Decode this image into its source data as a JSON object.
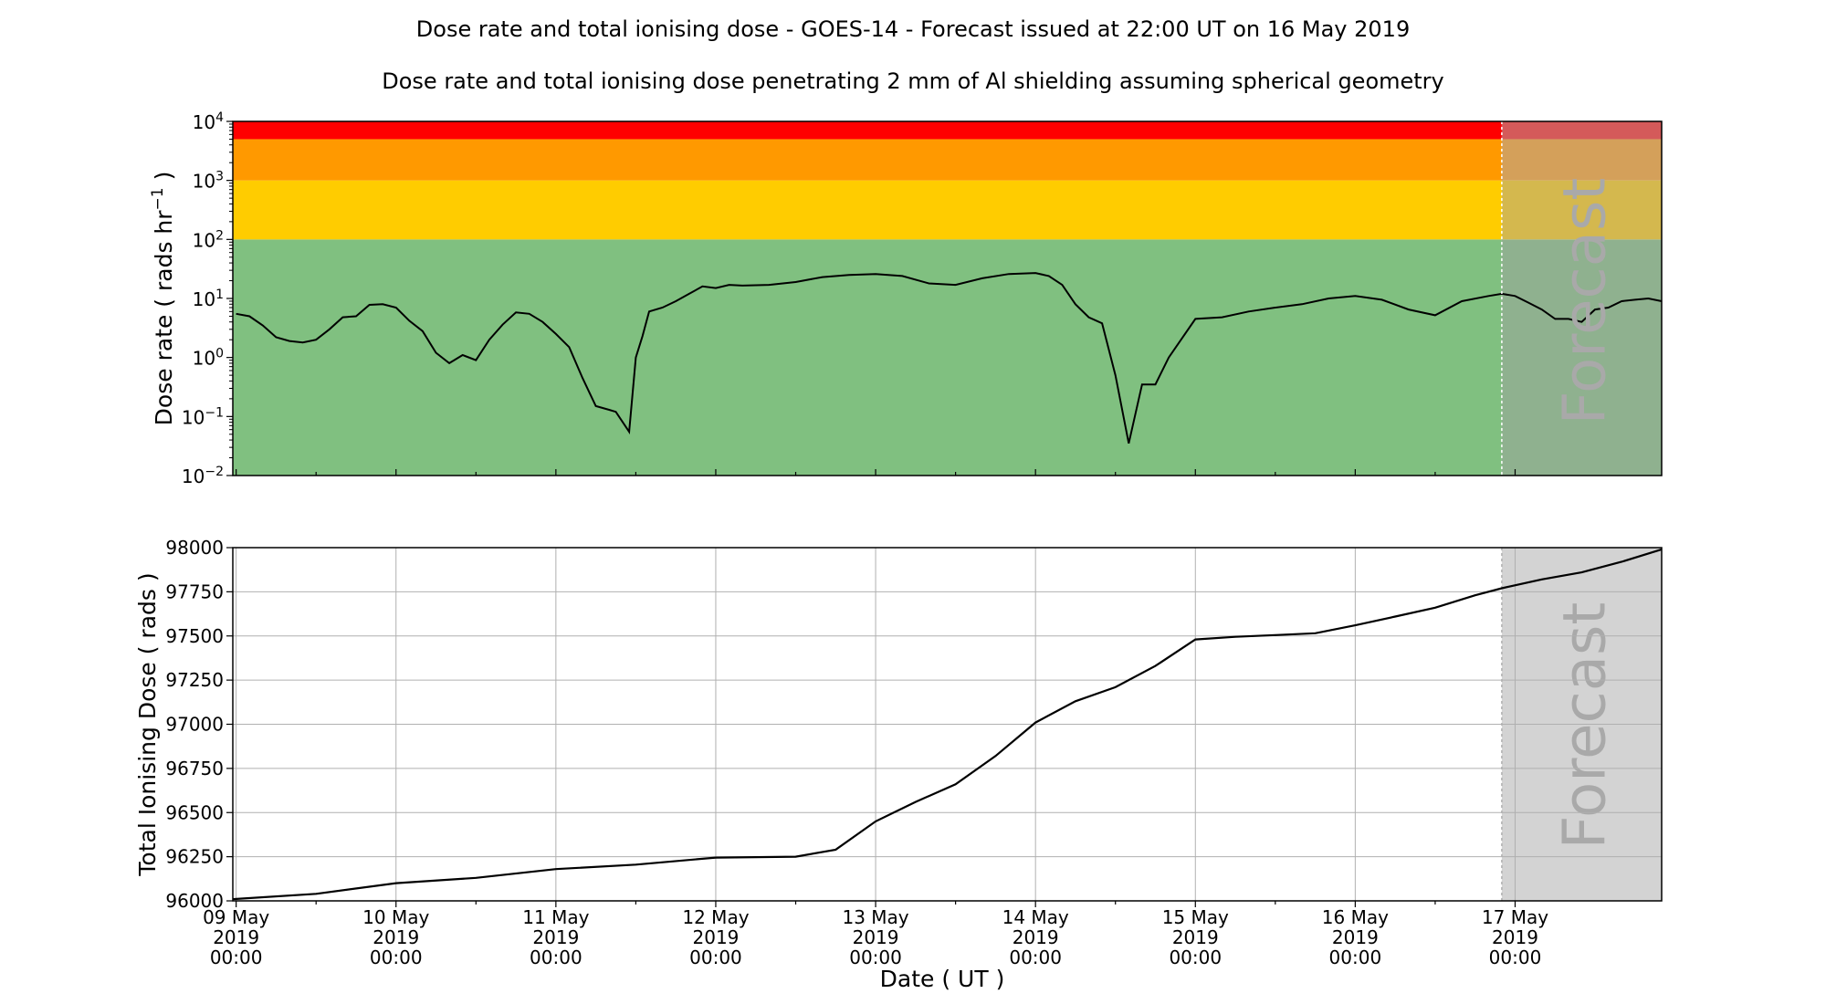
{
  "title": "Dose rate and total ionising dose - GOES-14 - Forecast issued at 22:00 UT on 16 May 2019",
  "subtitle": "Dose rate and total ionising dose penetrating 2 mm of Al shielding assuming spherical geometry",
  "forecast_label": "Forecast",
  "xlabel": "Date ( UT )",
  "x_ticks": [
    {
      "day": 0,
      "l1": "09 May",
      "l2": "2019",
      "l3": "00:00"
    },
    {
      "day": 1,
      "l1": "10 May",
      "l2": "2019",
      "l3": "00:00"
    },
    {
      "day": 2,
      "l1": "11 May",
      "l2": "2019",
      "l3": "00:00"
    },
    {
      "day": 3,
      "l1": "12 May",
      "l2": "2019",
      "l3": "00:00"
    },
    {
      "day": 4,
      "l1": "13 May",
      "l2": "2019",
      "l3": "00:00"
    },
    {
      "day": 5,
      "l1": "14 May",
      "l2": "2019",
      "l3": "00:00"
    },
    {
      "day": 6,
      "l1": "15 May",
      "l2": "2019",
      "l3": "00:00"
    },
    {
      "day": 7,
      "l1": "16 May",
      "l2": "2019",
      "l3": "00:00"
    },
    {
      "day": 8,
      "l1": "17 May",
      "l2": "2019",
      "l3": "00:00"
    }
  ],
  "chart_data": [
    {
      "type": "line",
      "ylabel": "Dose rate ( rads hr",
      "ylabel_sup": "−1",
      "ylabel_end": " )",
      "yscale": "log",
      "ylim": [
        0.01,
        10000
      ],
      "xlim": [
        "08 May 2019 23:30",
        "17 May 2019 22:00"
      ],
      "forecast_start": "16 May 2019 22:00",
      "y_ticks": [
        {
          "value": 0.01,
          "base": "10",
          "exp": "−2"
        },
        {
          "value": 0.1,
          "base": "10",
          "exp": "−1"
        },
        {
          "value": 1,
          "base": "10",
          "exp": "0"
        },
        {
          "value": 10,
          "base": "10",
          "exp": "1"
        },
        {
          "value": 100,
          "base": "10",
          "exp": "2"
        },
        {
          "value": 1000,
          "base": "10",
          "exp": "3"
        },
        {
          "value": 10000,
          "base": "10",
          "exp": "4"
        }
      ],
      "bands": [
        {
          "from": 0.01,
          "to": 100,
          "color": "#80c080",
          "forecast_color": "#8fb18f"
        },
        {
          "from": 100,
          "to": 1000,
          "color": "#ffcc00",
          "forecast_color": "#d4b84e"
        },
        {
          "from": 1000,
          "to": 5000,
          "color": "#ff9900",
          "forecast_color": "#d4a05a"
        },
        {
          "from": 5000,
          "to": 10000,
          "color": "#ff0000",
          "forecast_color": "#d45a5a"
        }
      ],
      "series": [
        {
          "x": [
            "09 May 00:00",
            "09 May 02:00",
            "09 May 04:00",
            "09 May 06:00",
            "09 May 08:00",
            "09 May 10:00",
            "09 May 12:00",
            "09 May 14:00",
            "09 May 16:00",
            "09 May 18:00",
            "09 May 20:00",
            "09 May 22:00",
            "10 May 00:00",
            "10 May 02:00",
            "10 May 04:00",
            "10 May 06:00",
            "10 May 08:00",
            "10 May 10:00",
            "10 May 12:00",
            "10 May 14:00",
            "10 May 16:00",
            "10 May 18:00",
            "10 May 20:00",
            "10 May 22:00",
            "11 May 00:00",
            "11 May 02:00",
            "11 May 04:00",
            "11 May 06:00",
            "11 May 08:00",
            "11 May 09:00",
            "11 May 11:00",
            "11 May 12:00",
            "11 May 13:00",
            "11 May 14:00",
            "11 May 16:00",
            "11 May 18:00",
            "11 May 20:00",
            "11 May 22:00",
            "12 May 00:00",
            "12 May 02:00",
            "12 May 04:00",
            "12 May 08:00",
            "12 May 12:00",
            "12 May 16:00",
            "12 May 20:00",
            "13 May 00:00",
            "13 May 04:00",
            "13 May 08:00",
            "13 May 12:00",
            "13 May 16:00",
            "13 May 20:00",
            "14 May 00:00",
            "14 May 02:00",
            "14 May 04:00",
            "14 May 06:00",
            "14 May 08:00",
            "14 May 10:00",
            "14 May 12:00",
            "14 May 14:00",
            "14 May 16:00",
            "14 May 18:00",
            "14 May 20:00",
            "15 May 00:00",
            "15 May 04:00",
            "15 May 08:00",
            "15 May 12:00",
            "15 May 16:00",
            "15 May 20:00",
            "16 May 00:00",
            "16 May 04:00",
            "16 May 08:00",
            "16 May 12:00",
            "16 May 16:00",
            "16 May 20:00",
            "16 May 22:00",
            "17 May 00:00",
            "17 May 02:00",
            "17 May 04:00",
            "17 May 06:00",
            "17 May 08:00",
            "17 May 10:00",
            "17 May 12:00",
            "17 May 14:00",
            "17 May 16:00",
            "17 May 18:00",
            "17 May 20:00",
            "17 May 22:00"
          ],
          "y": [
            5.5,
            5.0,
            3.5,
            2.2,
            1.9,
            1.8,
            2.0,
            3.0,
            4.8,
            5.0,
            7.8,
            8.0,
            7.0,
            4.2,
            2.8,
            1.2,
            0.8,
            1.1,
            0.9,
            2.0,
            3.6,
            5.8,
            5.5,
            4.0,
            2.5,
            1.5,
            0.45,
            0.15,
            0.13,
            0.12,
            0.055,
            1.0,
            2.3,
            6.0,
            7.0,
            9.0,
            12.0,
            16.0,
            15.0,
            17.0,
            16.5,
            17.0,
            19.0,
            23.0,
            25.0,
            26.0,
            24.0,
            18.0,
            17.0,
            22.0,
            26.0,
            27.0,
            24.0,
            17.0,
            8.0,
            4.8,
            3.8,
            0.5,
            0.035,
            0.35,
            0.35,
            1.0,
            4.5,
            4.8,
            6.0,
            7.0,
            8.0,
            10.0,
            11.0,
            9.5,
            6.5,
            5.2,
            9.0,
            11.0,
            12.0,
            11.0,
            8.5,
            6.5,
            4.5,
            4.5,
            4.0,
            6.5,
            7.0,
            9.0,
            9.5,
            10.0,
            9.0
          ]
        }
      ]
    },
    {
      "type": "line",
      "ylabel": "Total Ionising Dose ( rads )",
      "ylim": [
        96000,
        98000
      ],
      "xlim": [
        "08 May 2019 23:30",
        "17 May 2019 22:00"
      ],
      "forecast_start": "16 May 2019 22:00",
      "grid": true,
      "y_ticks": [
        "96000",
        "96250",
        "96500",
        "96750",
        "97000",
        "97250",
        "97500",
        "97750",
        "98000"
      ],
      "series": [
        {
          "x": [
            "08 May 23:30",
            "09 May 12:00",
            "10 May 00:00",
            "10 May 12:00",
            "11 May 00:00",
            "11 May 12:00",
            "12 May 00:00",
            "12 May 12:00",
            "12 May 18:00",
            "13 May 00:00",
            "13 May 06:00",
            "13 May 12:00",
            "13 May 18:00",
            "14 May 00:00",
            "14 May 06:00",
            "14 May 12:00",
            "14 May 18:00",
            "15 May 00:00",
            "15 May 06:00",
            "15 May 12:00",
            "15 May 18:00",
            "16 May 00:00",
            "16 May 06:00",
            "16 May 12:00",
            "16 May 18:00",
            "16 May 22:00",
            "17 May 04:00",
            "17 May 10:00",
            "17 May 16:00",
            "17 May 22:00"
          ],
          "y": [
            96010,
            96040,
            96100,
            96130,
            96180,
            96205,
            96245,
            96250,
            96290,
            96450,
            96560,
            96660,
            96820,
            97010,
            97130,
            97210,
            97330,
            97480,
            97495,
            97505,
            97515,
            97560,
            97610,
            97660,
            97730,
            97770,
            97820,
            97860,
            97920,
            97990
          ]
        }
      ]
    }
  ]
}
